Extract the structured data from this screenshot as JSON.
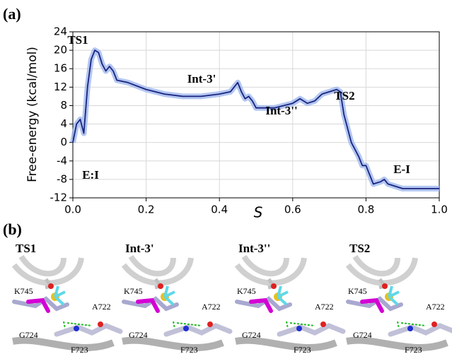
{
  "chart_data": {
    "type": "line",
    "panel_label": "(a)",
    "xlabel": "S",
    "ylabel": "Free-energy (kcal/mol)",
    "x": [
      0.0,
      0.01,
      0.02,
      0.03,
      0.04,
      0.05,
      0.06,
      0.07,
      0.08,
      0.09,
      0.1,
      0.11,
      0.12,
      0.15,
      0.2,
      0.25,
      0.3,
      0.35,
      0.4,
      0.43,
      0.45,
      0.46,
      0.47,
      0.48,
      0.49,
      0.5,
      0.55,
      0.6,
      0.62,
      0.64,
      0.66,
      0.68,
      0.72,
      0.73,
      0.74,
      0.76,
      0.78,
      0.79,
      0.8,
      0.81,
      0.82,
      0.84,
      0.85,
      0.86,
      0.9,
      0.95,
      1.0
    ],
    "values": [
      0,
      4,
      5,
      2,
      12,
      18,
      20,
      19.5,
      17,
      15.5,
      16.5,
      15.5,
      13.5,
      13,
      11.5,
      10.5,
      10,
      10,
      10.5,
      11,
      13,
      11,
      9.5,
      10,
      9,
      7.5,
      7.5,
      8.5,
      9.5,
      8.5,
      9,
      10.5,
      11.5,
      11,
      6,
      0,
      -3,
      -5,
      -5,
      -7,
      -9,
      -8.5,
      -8,
      -9,
      -10,
      -10,
      -10
    ],
    "color": "#1a237e",
    "band_color": "#9fb8ee",
    "annotations": [
      "TS1",
      "Int-3'",
      "Int-3''",
      "TS2",
      "E:I",
      "E-I"
    ],
    "xlim": [
      0.0,
      1.0
    ],
    "xticks": [
      {
        "value": 0.0,
        "label": "0.0"
      },
      {
        "value": 0.2,
        "label": "0.2"
      },
      {
        "value": 0.4,
        "label": "0.4"
      },
      {
        "value": 0.6,
        "label": "0.6"
      },
      {
        "value": 0.8,
        "label": "0.8"
      },
      {
        "value": 1.0,
        "label": "1.0"
      }
    ],
    "ylim": [
      -12,
      24
    ],
    "yticks": [
      -12,
      -8,
      -4,
      0,
      4,
      8,
      12,
      16,
      20,
      24
    ],
    "grid": true
  },
  "structures": {
    "panel_label": "(b)",
    "panels": [
      {
        "title": "TS1",
        "residues": [
          "K745",
          "A722",
          "G724",
          "F723"
        ]
      },
      {
        "title": "Int-3'",
        "residues": [
          "K745",
          "A722",
          "G724",
          "F723"
        ]
      },
      {
        "title": "Int-3''",
        "residues": [
          "K745",
          "A722",
          "G724",
          "F723"
        ]
      },
      {
        "title": "TS2",
        "residues": [
          "K745",
          "A722",
          "G724",
          "F723"
        ]
      }
    ]
  }
}
